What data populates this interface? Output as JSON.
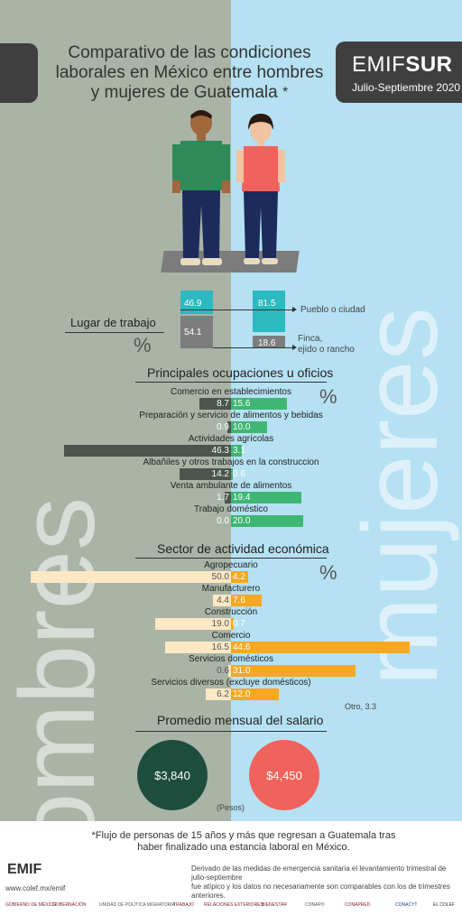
{
  "header": {
    "title_line1": "Comparativo de las condiciones",
    "title_line2": "laborales en México entre hombres",
    "title_line3": "y mujeres de Guatemala",
    "title_mark": "*",
    "brand_a": "EMIF",
    "brand_b": "SUR",
    "period": "Julio-Septiembre 2020"
  },
  "background_words": {
    "left": "hombres",
    "right": "mujeres"
  },
  "colors": {
    "left_bg": "#a9b4a7",
    "right_bg": "#b5e1f3",
    "men_dark": "#4b544d",
    "women_green": "#3fb673",
    "men_sector": "#fde8c4",
    "women_sector": "#f7a823",
    "teal": "#2cb9bf",
    "grey": "#7d7d7d",
    "salary_men": "#1d4d3d",
    "salary_women": "#f0625c"
  },
  "icons": {
    "men": "man-figure-icon",
    "women": "woman-figure-icon"
  },
  "lugar": {
    "label": "Lugar de trabajo",
    "pct": "%",
    "men_pueblo": "46.9",
    "men_finca": "54.1",
    "women_pueblo": "81.5",
    "women_finca": "18.6",
    "pueblo_label": "Pueblo o ciudad",
    "finca_label_1": "Finca,",
    "finca_label_2": "ejido o rancho"
  },
  "salary": {
    "title": "Promedio mensual del salario",
    "men": "$3,840",
    "women": "$4,450",
    "unit": "(Pesos)"
  },
  "footer": {
    "footnote_1": "*Flujo de personas de 15 años y más que regresan a Guatemala tras",
    "footnote_2": "haber finalizado una estancia laboral en México.",
    "disclaimer_1": "Derivado de las medidas de emergencia sanitaria el levantamiento trimestral de julio-septiembre",
    "disclaimer_2": "fue atípico y los datos no necesariamente son comparables con los de trimestres anteriores.",
    "logo": "EMIF",
    "url": "www.colef.mx/emif",
    "partners": [
      "GOBIERNO DE MÉXICO",
      "GOBERNACIÓN",
      "UNIDAD DE POLÍTICA MIGRATORIA",
      "TRABAJO",
      "RELACIONES EXTERIORES",
      "BIENESTAR",
      "CONAPO",
      "CONAPRED",
      "CONACYT",
      "EL COLEF"
    ]
  },
  "chart_data": [
    {
      "type": "bar",
      "title": "Principales ocupaciones u oficios",
      "unit": "%",
      "categories": [
        "Comercio en establecimientos",
        "Preparación y servicio de alimentos y bebidas",
        "Actividades agrícolas",
        "Albañiles y otros trabajos en la construccion",
        "Venta ambulante de alimentos",
        "Trabajo doméstico"
      ],
      "series": [
        {
          "values": [
            8.7,
            0.9,
            46.3,
            14.2,
            1.7,
            0.0
          ],
          "labels": [
            "8.7",
            "0.9",
            "46.3",
            "14.2",
            "1.7",
            "0.0"
          ]
        },
        {
          "values": [
            15.6,
            10.0,
            3.1,
            0.6,
            19.4,
            20.0
          ],
          "labels": [
            "15.6",
            "10.0",
            "3.1",
            "0.6",
            "19.4",
            "20.0"
          ]
        }
      ]
    },
    {
      "type": "bar",
      "title": "Sector de actividad económica",
      "unit": "%",
      "categories": [
        "Agropecuario",
        "Manufacturero",
        "Construcción",
        "Comercio",
        "Servicios domésticos",
        "Servicios diversos (excluye domésticos)"
      ],
      "series": [
        {
          "values": [
            50.0,
            4.4,
            19.0,
            16.5,
            0.6,
            6.2
          ],
          "labels": [
            "50.0",
            "4.4",
            "19.0",
            "16.5",
            "0.6",
            "6.2"
          ]
        },
        {
          "values": [
            4.2,
            7.6,
            0.7,
            44.6,
            31.0,
            12.0
          ],
          "labels": [
            "4.2",
            "7.6",
            "0.7",
            "44.6",
            "31.0",
            "12.0"
          ]
        }
      ],
      "annotation": "Otro, 3.3"
    }
  ]
}
